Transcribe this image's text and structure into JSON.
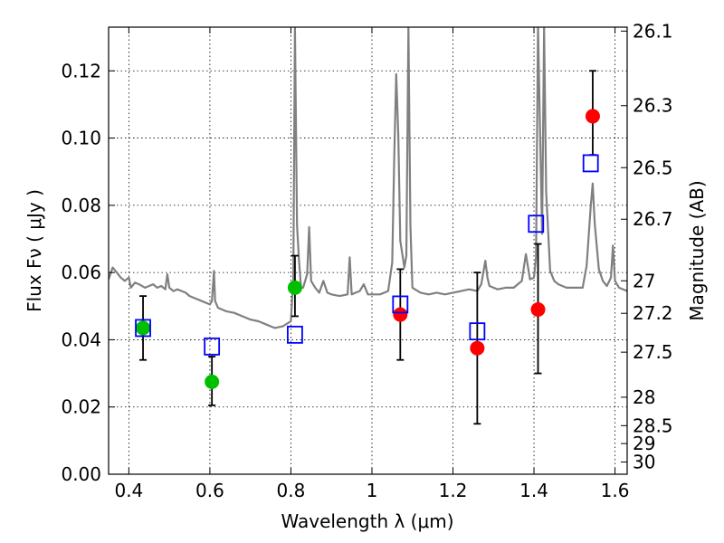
{
  "chart_data": {
    "type": "scatter",
    "xlabel": "Wavelength  λ (μm)",
    "ylabel": "Flux  Fν  ( μJy )",
    "y2label": "Magnitude (AB)",
    "xlim": [
      0.35,
      1.63
    ],
    "ylim": [
      0.0,
      0.133
    ],
    "grid": true,
    "x_ticks": [
      0.4,
      0.6,
      0.8,
      1.0,
      1.2,
      1.4,
      1.6
    ],
    "x_tick_labels": [
      "0.4",
      "0.6",
      "0.8",
      "1",
      "1.2",
      "1.4",
      "1.6"
    ],
    "y_ticks": [
      0.0,
      0.02,
      0.04,
      0.06,
      0.08,
      0.1,
      0.12
    ],
    "y_tick_labels": [
      "0.00",
      "0.02",
      "0.04",
      "0.06",
      "0.08",
      "0.10",
      "0.12"
    ],
    "mag_ticks": [
      26.1,
      26.3,
      26.5,
      26.7,
      27,
      27.2,
      27.5,
      28,
      28.5,
      29,
      30
    ],
    "mag_tick_labels": [
      "26.1",
      "26.3",
      "26.5",
      "26.7",
      "27",
      "27.2",
      "27.5",
      "28",
      "28.5",
      "29",
      "30"
    ],
    "colors": {
      "model_spectrum": "#808080",
      "optical_photometry": "#00bf00",
      "nir_photometry": "#ff0000",
      "model_photometry": "#0000ff",
      "error_bars": "#000000",
      "grid": "#000000"
    },
    "series": [
      {
        "marker": "line",
        "points": [
          [
            0.35,
            0.058
          ],
          [
            0.36,
            0.0615
          ],
          [
            0.37,
            0.06
          ],
          [
            0.38,
            0.0585
          ],
          [
            0.39,
            0.0575
          ],
          [
            0.4,
            0.0585
          ],
          [
            0.405,
            0.0555
          ],
          [
            0.415,
            0.057
          ],
          [
            0.425,
            0.0565
          ],
          [
            0.44,
            0.0555
          ],
          [
            0.46,
            0.0565
          ],
          [
            0.47,
            0.0555
          ],
          [
            0.48,
            0.056
          ],
          [
            0.49,
            0.055
          ],
          [
            0.495,
            0.0595
          ],
          [
            0.5,
            0.0555
          ],
          [
            0.51,
            0.0545
          ],
          [
            0.52,
            0.055
          ],
          [
            0.53,
            0.0545
          ],
          [
            0.54,
            0.054
          ],
          [
            0.55,
            0.053
          ],
          [
            0.56,
            0.0525
          ],
          [
            0.58,
            0.0515
          ],
          [
            0.6,
            0.0505
          ],
          [
            0.605,
            0.0515
          ],
          [
            0.61,
            0.0605
          ],
          [
            0.613,
            0.0515
          ],
          [
            0.62,
            0.0495
          ],
          [
            0.64,
            0.0485
          ],
          [
            0.66,
            0.048
          ],
          [
            0.68,
            0.047
          ],
          [
            0.7,
            0.046
          ],
          [
            0.72,
            0.0455
          ],
          [
            0.74,
            0.0445
          ],
          [
            0.76,
            0.0435
          ],
          [
            0.78,
            0.044
          ],
          [
            0.8,
            0.0455
          ],
          [
            0.806,
            0.058
          ],
          [
            0.81,
            0.133
          ],
          [
            0.815,
            0.074
          ],
          [
            0.82,
            0.0635
          ],
          [
            0.825,
            0.0555
          ],
          [
            0.83,
            0.0555
          ],
          [
            0.84,
            0.0595
          ],
          [
            0.845,
            0.0735
          ],
          [
            0.85,
            0.0575
          ],
          [
            0.86,
            0.0555
          ],
          [
            0.87,
            0.054
          ],
          [
            0.88,
            0.0575
          ],
          [
            0.89,
            0.054
          ],
          [
            0.9,
            0.0535
          ],
          [
            0.92,
            0.053
          ],
          [
            0.94,
            0.0535
          ],
          [
            0.945,
            0.0645
          ],
          [
            0.95,
            0.0535
          ],
          [
            0.96,
            0.054
          ],
          [
            0.97,
            0.0545
          ],
          [
            0.98,
            0.0565
          ],
          [
            0.99,
            0.0535
          ],
          [
            1.0,
            0.0535
          ],
          [
            1.02,
            0.0535
          ],
          [
            1.04,
            0.0545
          ],
          [
            1.05,
            0.063
          ],
          [
            1.055,
            0.094
          ],
          [
            1.06,
            0.119
          ],
          [
            1.065,
            0.101
          ],
          [
            1.07,
            0.0695
          ],
          [
            1.08,
            0.0615
          ],
          [
            1.085,
            0.065
          ],
          [
            1.09,
            0.133
          ],
          [
            1.095,
            0.074
          ],
          [
            1.1,
            0.0555
          ],
          [
            1.12,
            0.054
          ],
          [
            1.14,
            0.0535
          ],
          [
            1.16,
            0.054
          ],
          [
            1.18,
            0.0535
          ],
          [
            1.2,
            0.054
          ],
          [
            1.22,
            0.0545
          ],
          [
            1.24,
            0.055
          ],
          [
            1.26,
            0.0545
          ],
          [
            1.27,
            0.0565
          ],
          [
            1.28,
            0.0635
          ],
          [
            1.285,
            0.0585
          ],
          [
            1.29,
            0.056
          ],
          [
            1.31,
            0.055
          ],
          [
            1.33,
            0.0555
          ],
          [
            1.35,
            0.0555
          ],
          [
            1.37,
            0.0575
          ],
          [
            1.38,
            0.0655
          ],
          [
            1.39,
            0.058
          ],
          [
            1.4,
            0.0585
          ],
          [
            1.405,
            0.0645
          ],
          [
            1.41,
            0.133
          ],
          [
            1.42,
            0.0715
          ],
          [
            1.425,
            0.133
          ],
          [
            1.43,
            0.084
          ],
          [
            1.44,
            0.0605
          ],
          [
            1.45,
            0.0575
          ],
          [
            1.46,
            0.0565
          ],
          [
            1.48,
            0.0555
          ],
          [
            1.5,
            0.0555
          ],
          [
            1.52,
            0.0555
          ],
          [
            1.53,
            0.062
          ],
          [
            1.54,
            0.0795
          ],
          [
            1.545,
            0.0865
          ],
          [
            1.55,
            0.0745
          ],
          [
            1.56,
            0.061
          ],
          [
            1.57,
            0.0575
          ],
          [
            1.58,
            0.056
          ],
          [
            1.59,
            0.0585
          ],
          [
            1.595,
            0.068
          ],
          [
            1.6,
            0.0575
          ],
          [
            1.61,
            0.0555
          ],
          [
            1.63,
            0.0545
          ]
        ]
      },
      {
        "marker": "circle",
        "points": [
          [
            0.435,
            0.0435
          ],
          [
            0.605,
            0.0275
          ],
          [
            0.81,
            0.0555
          ]
        ]
      },
      {
        "marker": "circle",
        "points": [
          [
            1.07,
            0.0475
          ],
          [
            1.26,
            0.0375
          ],
          [
            1.41,
            0.049
          ],
          [
            1.545,
            0.1065
          ]
        ]
      },
      {
        "marker": "open-square",
        "points": [
          [
            0.435,
            0.0435
          ],
          [
            0.605,
            0.038
          ],
          [
            0.81,
            0.0415
          ],
          [
            1.07,
            0.0505
          ],
          [
            1.26,
            0.0425
          ],
          [
            1.405,
            0.0745
          ],
          [
            1.54,
            0.0925
          ]
        ]
      }
    ],
    "error_bars": [
      {
        "x": 0.435,
        "low": 0.034,
        "high": 0.053
      },
      {
        "x": 0.605,
        "low": 0.0205,
        "high": 0.035
      },
      {
        "x": 0.81,
        "low": 0.047,
        "high": 0.065
      },
      {
        "x": 1.07,
        "low": 0.034,
        "high": 0.061
      },
      {
        "x": 1.26,
        "low": 0.015,
        "high": 0.06
      },
      {
        "x": 1.41,
        "low": 0.03,
        "high": 0.0685
      },
      {
        "x": 1.545,
        "low": 0.095,
        "high": 0.12
      }
    ]
  }
}
